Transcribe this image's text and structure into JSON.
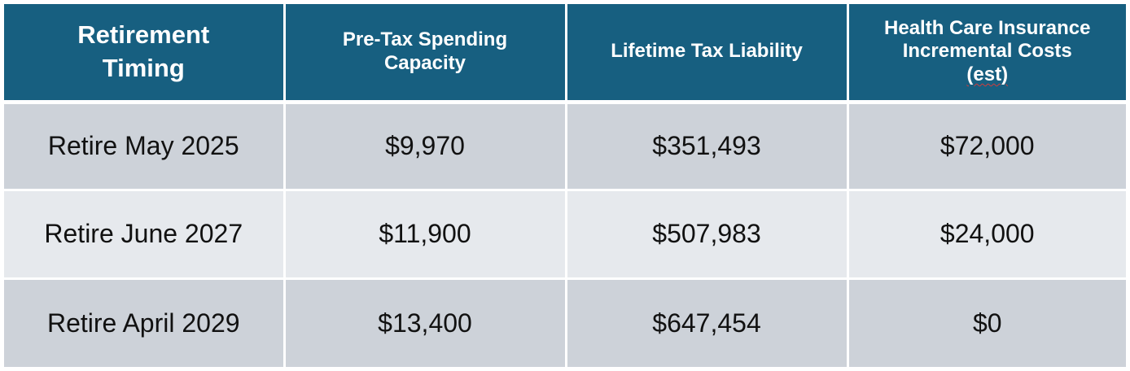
{
  "table": {
    "headers": {
      "timing": [
        "Retirement",
        "Timing"
      ],
      "spending": [
        "Pre-Tax Spending",
        "Capacity"
      ],
      "tax": [
        "Lifetime Tax Liability"
      ],
      "health": [
        "Health Care Insurance",
        "Incremental Costs",
        "(est)"
      ]
    },
    "rows": [
      {
        "timing": "Retire May 2025",
        "spending": "$9,970",
        "tax": "$351,493",
        "health": "$72,000"
      },
      {
        "timing": "Retire June 2027",
        "spending": "$11,900",
        "tax": "$507,983",
        "health": "$24,000"
      },
      {
        "timing": "Retire April 2029",
        "spending": "$13,400",
        "tax": "$647,454",
        "health": "$0"
      }
    ]
  },
  "colors": {
    "header_bg": "#175f80",
    "row_dark": "#cdd2d9",
    "row_light": "#e6e9ed",
    "spellcheck_underline": "#d23b3b"
  }
}
